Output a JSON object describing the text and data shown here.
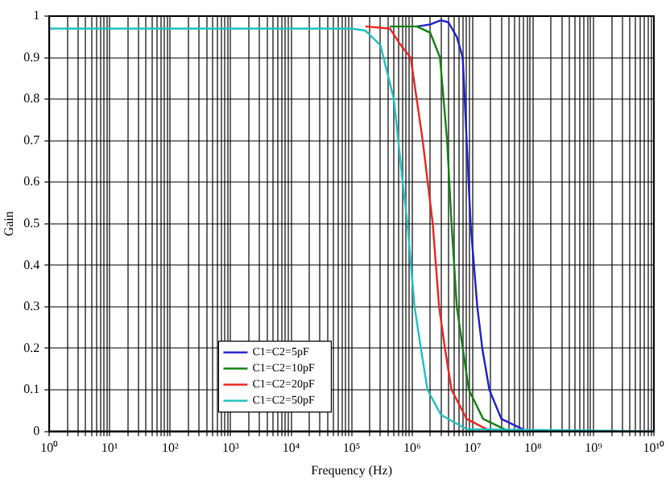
{
  "chart_data": {
    "type": "line",
    "xlabel": "Frequency (Hz)",
    "ylabel": "Gain",
    "log": "x",
    "grid": true,
    "legend": "bottom left",
    "marker": "none",
    "line_style": "solid",
    "xlim": [
      1,
      10000000000
    ],
    "ylim": [
      0,
      1
    ],
    "xticks": [
      {
        "value": 1,
        "label": "10⁰"
      },
      {
        "value": 2,
        "label": null
      },
      {
        "value": 3,
        "label": null
      },
      {
        "value": 4,
        "label": null
      },
      {
        "value": 5,
        "label": null
      },
      {
        "value": 6,
        "label": null
      },
      {
        "value": 7,
        "label": null
      },
      {
        "value": 8,
        "label": null
      },
      {
        "value": 9,
        "label": null
      },
      {
        "value": 10,
        "label": "10¹"
      },
      {
        "value": 20,
        "label": null
      },
      {
        "value": 30,
        "label": null
      },
      {
        "value": 40,
        "label": null
      },
      {
        "value": 50,
        "label": null
      },
      {
        "value": 60,
        "label": null
      },
      {
        "value": 70,
        "label": null
      },
      {
        "value": 80,
        "label": null
      },
      {
        "value": 90,
        "label": null
      },
      {
        "value": 100,
        "label": "10²"
      },
      {
        "value": 200,
        "label": null
      },
      {
        "value": 300,
        "label": null
      },
      {
        "value": 400,
        "label": null
      },
      {
        "value": 500,
        "label": null
      },
      {
        "value": 600,
        "label": null
      },
      {
        "value": 700,
        "label": null
      },
      {
        "value": 800,
        "label": null
      },
      {
        "value": 900,
        "label": null
      },
      {
        "value": 1000,
        "label": "10³"
      },
      {
        "value": 2000,
        "label": null
      },
      {
        "value": 3000,
        "label": null
      },
      {
        "value": 4000,
        "label": null
      },
      {
        "value": 5000,
        "label": null
      },
      {
        "value": 6000,
        "label": null
      },
      {
        "value": 7000,
        "label": null
      },
      {
        "value": 8000,
        "label": null
      },
      {
        "value": 9000,
        "label": null
      },
      {
        "value": 10000,
        "label": "10⁴"
      },
      {
        "value": 20000,
        "label": null
      },
      {
        "value": 30000,
        "label": null
      },
      {
        "value": 40000,
        "label": null
      },
      {
        "value": 50000,
        "label": null
      },
      {
        "value": 60000,
        "label": null
      },
      {
        "value": 70000,
        "label": null
      },
      {
        "value": 80000,
        "label": null
      },
      {
        "value": 90000,
        "label": null
      },
      {
        "value": 100000,
        "label": "10⁵"
      },
      {
        "value": 200000,
        "label": null
      },
      {
        "value": 300000,
        "label": null
      },
      {
        "value": 400000,
        "label": null
      },
      {
        "value": 500000,
        "label": null
      },
      {
        "value": 600000,
        "label": null
      },
      {
        "value": 700000,
        "label": null
      },
      {
        "value": 800000,
        "label": null
      },
      {
        "value": 900000,
        "label": null
      },
      {
        "value": 1000000,
        "label": "10⁶"
      },
      {
        "value": 2000000,
        "label": null
      },
      {
        "value": 3000000,
        "label": null
      },
      {
        "value": 4000000,
        "label": null
      },
      {
        "value": 5000000,
        "label": null
      },
      {
        "value": 6000000,
        "label": null
      },
      {
        "value": 7000000,
        "label": null
      },
      {
        "value": 8000000,
        "label": null
      },
      {
        "value": 9000000,
        "label": null
      },
      {
        "value": 10000000,
        "label": "10⁷"
      },
      {
        "value": 20000000,
        "label": null
      },
      {
        "value": 30000000,
        "label": null
      },
      {
        "value": 40000000,
        "label": null
      },
      {
        "value": 50000000,
        "label": null
      },
      {
        "value": 60000000,
        "label": null
      },
      {
        "value": 70000000,
        "label": null
      },
      {
        "value": 80000000,
        "label": null
      },
      {
        "value": 90000000,
        "label": null
      },
      {
        "value": 100000000,
        "label": "10⁸"
      },
      {
        "value": 200000000,
        "label": null
      },
      {
        "value": 300000000,
        "label": null
      },
      {
        "value": 400000000,
        "label": null
      },
      {
        "value": 500000000,
        "label": null
      },
      {
        "value": 600000000,
        "label": null
      },
      {
        "value": 700000000,
        "label": null
      },
      {
        "value": 800000000,
        "label": null
      },
      {
        "value": 900000000,
        "label": null
      },
      {
        "value": 1000000000,
        "label": "10⁹"
      },
      {
        "value": 2000000000,
        "label": null
      },
      {
        "value": 3000000000,
        "label": null
      },
      {
        "value": 4000000000,
        "label": null
      },
      {
        "value": 5000000000,
        "label": null
      },
      {
        "value": 6000000000,
        "label": null
      },
      {
        "value": 7000000000,
        "label": null
      },
      {
        "value": 8000000000,
        "label": null
      },
      {
        "value": 9000000000,
        "label": null
      },
      {
        "value": 10000000000,
        "label": "10¹⁰"
      }
    ],
    "yticks": [
      0,
      0.1,
      0.2,
      0.3,
      0.4,
      0.5,
      0.6,
      0.7,
      0.8,
      0.9,
      1
    ],
    "series": [
      {
        "name": "C1=C2=5pF",
        "color": "#1f1fcc",
        "x": [
          1200000,
          2000000,
          3000000,
          4000000,
          5500000,
          6900000,
          8000000,
          9300000,
          12000000,
          14500000,
          19000000,
          30000000,
          80000000
        ],
        "values": [
          0.975,
          0.98,
          0.99,
          0.985,
          0.95,
          0.9,
          0.7,
          0.5,
          0.3,
          0.2,
          0.1,
          0.03,
          0
        ]
      },
      {
        "name": "C1=C2=10pF",
        "color": "#108010",
        "x": [
          430000,
          1200000,
          2000000,
          2900000,
          3800000,
          4500000,
          5500000,
          6900000,
          8700000,
          15000000,
          40000000
        ],
        "values": [
          0.975,
          0.975,
          0.96,
          0.9,
          0.7,
          0.5,
          0.3,
          0.2,
          0.1,
          0.03,
          0
        ]
      },
      {
        "name": "C1=C2=20pF",
        "color": "#ee2222",
        "x": [
          170000,
          430000,
          650000,
          950000,
          1500000,
          2200000,
          2800000,
          3500000,
          4500000,
          8000000,
          20000000
        ],
        "values": [
          0.975,
          0.97,
          0.93,
          0.9,
          0.7,
          0.5,
          0.3,
          0.2,
          0.1,
          0.03,
          0
        ]
      },
      {
        "name": "C1=C2=50pF",
        "color": "#20c0c0",
        "x": [
          1,
          100000,
          170000,
          300000,
          500000,
          700000,
          840000,
          1100000,
          1400000,
          1800000,
          3000000,
          8000000,
          10000000000
        ],
        "values": [
          0.97,
          0.97,
          0.965,
          0.93,
          0.8,
          0.6,
          0.5,
          0.3,
          0.2,
          0.1,
          0.04,
          0.005,
          0
        ]
      }
    ]
  }
}
